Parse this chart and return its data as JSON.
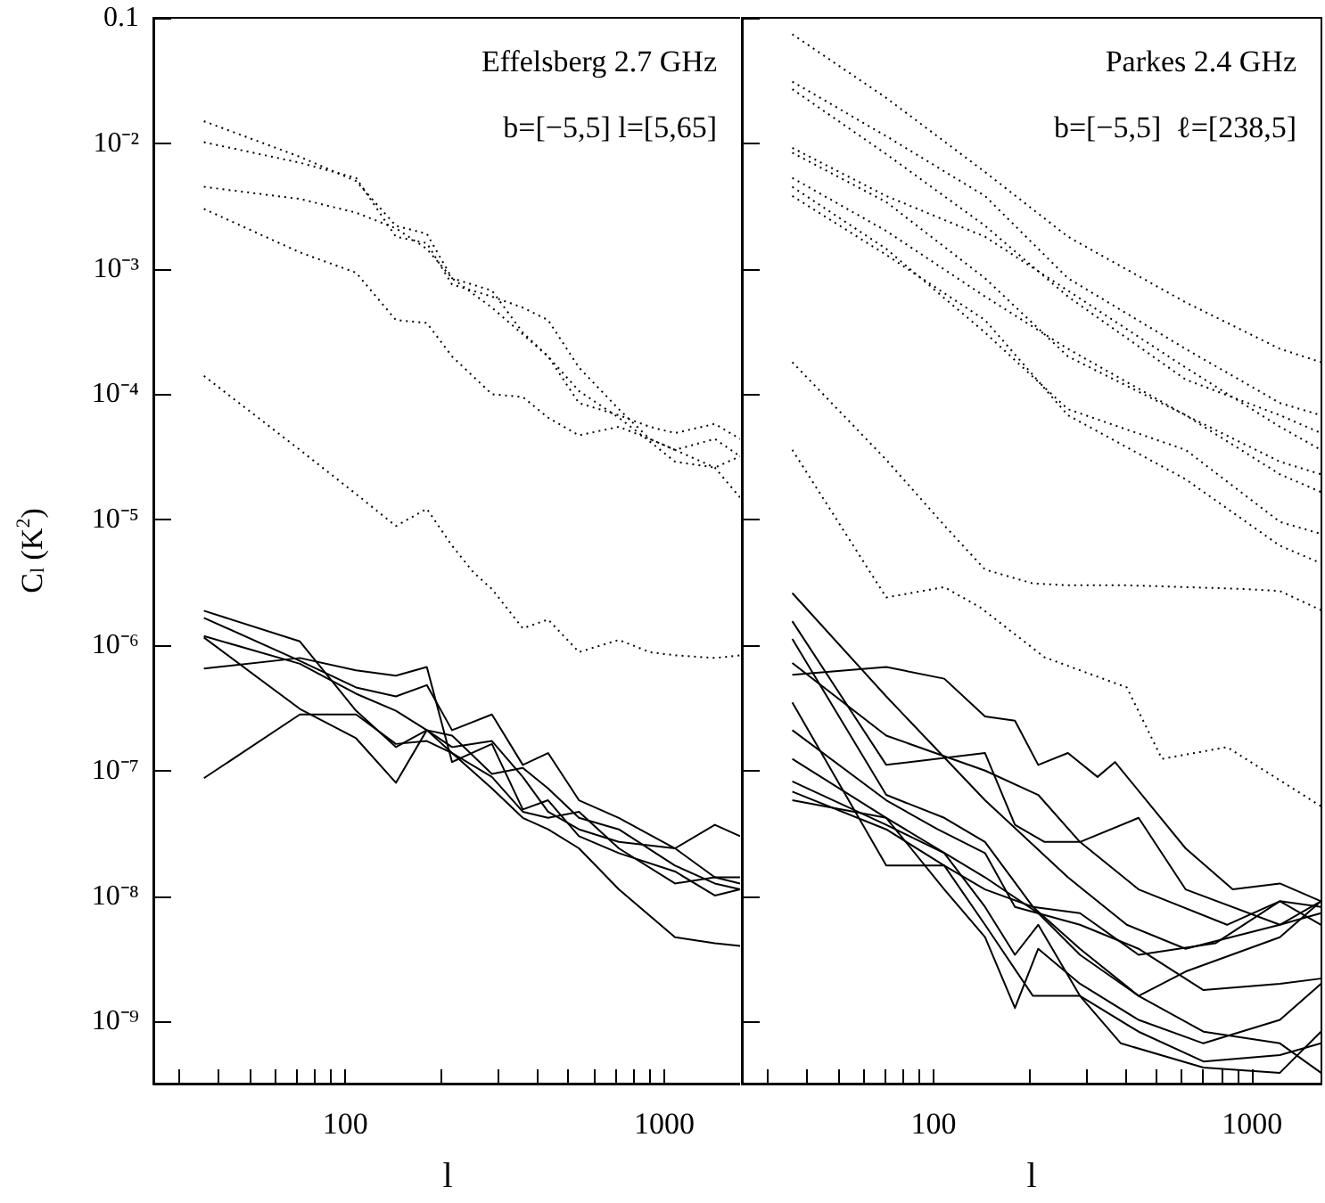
{
  "chart_data": [
    {
      "type": "line",
      "xlabel": "l",
      "ylabel": "C$_{l}$ (K$^{2}$)",
      "log": "xy",
      "marker": "none",
      "grid": false,
      "annotations": [
        "Effelsberg 2.7 GHz",
        "b=[−5,5] l=[5,65]"
      ],
      "xlim": [
        25,
        1750
      ],
      "ylim": [
        3.2e-10,
        0.1
      ],
      "xticks": [
        {
          "value": 30,
          "label": null
        },
        {
          "value": 40,
          "label": null
        },
        {
          "value": 50,
          "label": null
        },
        {
          "value": 60,
          "label": null
        },
        {
          "value": 70,
          "label": null
        },
        {
          "value": 80,
          "label": null
        },
        {
          "value": 90,
          "label": null
        },
        {
          "value": 100,
          "label": "100"
        },
        {
          "value": 200,
          "label": null
        },
        {
          "value": 300,
          "label": null
        },
        {
          "value": 400,
          "label": null
        },
        {
          "value": 500,
          "label": null
        },
        {
          "value": 600,
          "label": null
        },
        {
          "value": 700,
          "label": null
        },
        {
          "value": 800,
          "label": null
        },
        {
          "value": 900,
          "label": null
        },
        {
          "value": 1000,
          "label": "1000"
        }
      ],
      "yticks": [
        {
          "value": 1e-09,
          "label": "10⁻⁹"
        },
        {
          "value": 1e-08,
          "label": "10⁻⁸"
        },
        {
          "value": 1e-07,
          "label": "10⁻⁷"
        },
        {
          "value": 1e-06,
          "label": "10⁻⁶"
        },
        {
          "value": 1e-05,
          "label": "10⁻⁵"
        },
        {
          "value": 0.0001,
          "label": "10⁻⁴"
        },
        {
          "value": 0.001,
          "label": "10⁻³"
        },
        {
          "value": 0.01,
          "label": "10⁻²"
        },
        0.1
      ],
      "series": [
        {
          "color": "#000000",
          "line_style": "dotted",
          "x": [
            36,
            72,
            108,
            144,
            180,
            216,
            288,
            360,
            432,
            540,
            720,
            900,
            1080,
            1440,
            1728
          ],
          "values": [
            0.015,
            0.0078,
            0.005,
            0.0022,
            0.0019,
            0.00084,
            0.00067,
            0.00031,
            0.0002,
            8.5e-05,
            6.8e-05,
            5.5e-05,
            4.9e-05,
            5.8e-05,
            4.4e-05
          ]
        },
        {
          "color": "#000000",
          "line_style": "dotted",
          "x": [
            36,
            72,
            108,
            144,
            180,
            216,
            288,
            360,
            432,
            540,
            720,
            900,
            1080,
            1440,
            1728
          ],
          "values": [
            0.0102,
            0.007,
            0.0053,
            0.0018,
            0.0016,
            0.00075,
            0.0006,
            0.00049,
            0.00039,
            0.000163,
            7.6e-05,
            4.4e-05,
            3.6e-05,
            4.4e-05,
            3.2e-05
          ]
        },
        {
          "color": "#000000",
          "line_style": "dotted",
          "x": [
            36,
            72,
            108,
            144,
            180,
            216,
            288,
            360,
            432,
            540,
            720,
            900,
            1080,
            1440,
            1728
          ],
          "values": [
            0.0045,
            0.0036,
            0.0028,
            0.0021,
            0.00144,
            0.00084,
            0.00049,
            0.0003,
            0.0002,
            0.000106,
            6.5e-05,
            4.2e-05,
            2.9e-05,
            2.6e-05,
            3.2e-05
          ]
        },
        {
          "color": "#000000",
          "line_style": "dotted",
          "x": [
            36,
            72,
            108,
            144,
            180,
            216,
            288,
            360,
            432,
            540,
            720,
            900,
            1080,
            1440,
            1728
          ],
          "values": [
            0.003,
            0.00135,
            0.00093,
            0.00039,
            0.00037,
            0.0002,
            0.0001,
            9.5e-05,
            6.5e-05,
            4.7e-05,
            5.5e-05,
            4.4e-05,
            3.6e-05,
            2.6e-05,
            1.5e-05
          ]
        },
        {
          "color": "#000000",
          "line_style": "dotted",
          "x": [
            36,
            72,
            108,
            144,
            180,
            216,
            252,
            288,
            360,
            432,
            540,
            720,
            900,
            1080,
            1440,
            1728
          ],
          "values": [
            0.00014,
            3.6e-05,
            1.6e-05,
            8.9e-06,
            1.22e-05,
            6.2e-06,
            3.8e-06,
            2.8e-06,
            1.36e-06,
            1.6e-06,
            8.8e-07,
            1.1e-06,
            8.8e-07,
            8.3e-07,
            7.9e-07,
            8.3e-07
          ]
        },
        {
          "color": "#000000",
          "line_style": "solid",
          "x": [
            36,
            72,
            108,
            144,
            180,
            216,
            288,
            360,
            432,
            540,
            720,
            1080,
            1440,
            1728
          ],
          "values": [
            1.88e-06,
            1.07e-06,
            3e-07,
            1.54e-07,
            2.1e-07,
            1.54e-07,
            1.72e-07,
            8.9e-08,
            4.7e-08,
            3.4e-08,
            2.7e-08,
            2.4e-08,
            3.7e-08,
            3e-08
          ]
        },
        {
          "color": "#000000",
          "line_style": "solid",
          "x": [
            36,
            72,
            108,
            144,
            180,
            216,
            288,
            360,
            432,
            540,
            720,
            1080,
            1440,
            1728
          ],
          "values": [
            1.65e-06,
            7.5e-07,
            4.6e-07,
            3.9e-07,
            4.8e-07,
            2.1e-07,
            2.8e-07,
            1.11e-07,
            1.38e-07,
            5.8e-08,
            4.2e-08,
            2.4e-08,
            1.41e-08,
            1.41e-08
          ]
        },
        {
          "color": "#000000",
          "line_style": "solid",
          "x": [
            36,
            72,
            108,
            144,
            180,
            216,
            288,
            360,
            432,
            540,
            720,
            1080,
            1440,
            1728
          ],
          "values": [
            1.18e-06,
            7.1e-07,
            4.1e-07,
            3e-07,
            2.1e-07,
            1.9e-07,
            9.4e-08,
            1.05e-07,
            7.2e-08,
            4.2e-08,
            3.4e-08,
            1.75e-08,
            1.26e-08,
            1.13e-08
          ]
        },
        {
          "color": "#000000",
          "line_style": "solid",
          "x": [
            36,
            72,
            108,
            144,
            180,
            216,
            288,
            360,
            432,
            540,
            720,
            1080,
            1440,
            1728
          ],
          "values": [
            1.15e-06,
            3.1e-07,
            1.81e-07,
            8e-08,
            2.1e-07,
            1.38e-07,
            8.9e-08,
            4.7e-08,
            4.2e-08,
            4.7e-08,
            2.4e-08,
            1.26e-08,
            1.41e-08,
            1.26e-08
          ]
        },
        {
          "color": "#000000",
          "line_style": "solid",
          "x": [
            36,
            72,
            108,
            144,
            180,
            216,
            288,
            360,
            432,
            540,
            720,
            1080,
            1440,
            1728
          ],
          "values": [
            6.5e-07,
            7.9e-07,
            6.3e-07,
            5.7e-07,
            6.7e-07,
            1.17e-07,
            1.63e-07,
            4.9e-08,
            5.8e-08,
            3e-08,
            2.2e-08,
            1.57e-08,
            1.01e-08,
            1.13e-08
          ]
        },
        {
          "color": "#000000",
          "line_style": "solid",
          "x": [
            36,
            72,
            108,
            144,
            180,
            216,
            288,
            360,
            432,
            540,
            720,
            1080,
            1440,
            1728
          ],
          "values": [
            8.7e-08,
            2.8e-07,
            2.8e-07,
            1.63e-07,
            1.72e-07,
            1.38e-07,
            7.2e-08,
            4.2e-08,
            3.4e-08,
            2.4e-08,
            1.13e-08,
            4.7e-09,
            4.2e-09,
            4e-09
          ]
        }
      ]
    },
    {
      "type": "line",
      "xlabel": "l",
      "log": "xy",
      "marker": "none",
      "grid": false,
      "tick_labels": "x",
      "annotations": [
        "Parkes 2.4 GHz",
        "b=[−5,5]  ℓ=[238,5]"
      ],
      "xlim": [
        25,
        1650
      ],
      "ylim": [
        3.2e-10,
        0.1
      ],
      "xticks": [
        {
          "value": 30,
          "label": null
        },
        {
          "value": 40,
          "label": null
        },
        {
          "value": 50,
          "label": null
        },
        {
          "value": 60,
          "label": null
        },
        {
          "value": 70,
          "label": null
        },
        {
          "value": 80,
          "label": null
        },
        {
          "value": 90,
          "label": null
        },
        {
          "value": 100,
          "label": "100"
        },
        {
          "value": 200,
          "label": null
        },
        {
          "value": 300,
          "label": null
        },
        {
          "value": 400,
          "label": null
        },
        {
          "value": 500,
          "label": null
        },
        {
          "value": 600,
          "label": null
        },
        {
          "value": 700,
          "label": null
        },
        {
          "value": 800,
          "label": null
        },
        {
          "value": 900,
          "label": null
        },
        {
          "value": 1000,
          "label": "1000"
        }
      ],
      "yticks": [
        {
          "value": 1e-09,
          "label": null
        },
        {
          "value": 1e-08,
          "label": null
        },
        {
          "value": 1e-07,
          "label": null
        },
        {
          "value": 1e-06,
          "label": null
        },
        {
          "value": 1e-05,
          "label": null
        },
        {
          "value": 0.0001,
          "label": null
        },
        {
          "value": 0.001,
          "label": null
        },
        {
          "value": 0.01,
          "label": null
        },
        {
          "value": 0.1,
          "label": null
        }
      ],
      "series": [
        {
          "color": "#000000",
          "line_style": "dotted",
          "x": [
            36,
            71,
            145,
            264,
            618,
            1222,
            1645
          ],
          "values": [
            0.074,
            0.023,
            0.0059,
            0.0018,
            0.00054,
            0.00023,
            0.00018
          ]
        },
        {
          "color": "#000000",
          "line_style": "dotted",
          "x": [
            36,
            71,
            145,
            264,
            618,
            1222,
            1645
          ],
          "values": [
            0.031,
            0.0114,
            0.0038,
            0.00084,
            0.00023,
            8.5e-05,
            6.8e-05
          ]
        },
        {
          "color": "#000000",
          "line_style": "dotted",
          "x": [
            36,
            71,
            145,
            264,
            618,
            1222,
            1645
          ],
          "values": [
            0.027,
            0.0082,
            0.0022,
            0.0006,
            0.000131,
            6.8e-05,
            4.9e-05
          ]
        },
        {
          "color": "#000000",
          "line_style": "dotted",
          "x": [
            36,
            71,
            145,
            264,
            618,
            1222,
            1645
          ],
          "values": [
            0.0092,
            0.0038,
            0.0018,
            0.00067,
            0.000163,
            5.5e-05,
            3.6e-05
          ]
        },
        {
          "color": "#000000",
          "line_style": "dotted",
          "x": [
            36,
            71,
            145,
            264,
            618,
            1222,
            1645
          ],
          "values": [
            0.0084,
            0.0034,
            0.00084,
            0.0002,
            6.8e-05,
            2.3e-05,
            1.66e-05
          ]
        },
        {
          "color": "#000000",
          "line_style": "dotted",
          "x": [
            36,
            71,
            145,
            264,
            618,
            1222,
            1645
          ],
          "values": [
            0.0053,
            0.002,
            0.0006,
            0.00023,
            6.8e-05,
            2.9e-05,
            2.3e-05
          ]
        },
        {
          "color": "#000000",
          "line_style": "dotted",
          "x": [
            36,
            71,
            145,
            264,
            618,
            1222,
            1645
          ],
          "values": [
            0.0045,
            0.00144,
            0.00031,
            7.6e-05,
            3.6e-05,
            9.6e-06,
            7.7e-06
          ]
        },
        {
          "color": "#000000",
          "line_style": "dotted",
          "x": [
            36,
            71,
            145,
            264,
            618,
            1222,
            1645
          ],
          "values": [
            0.0038,
            0.00129,
            0.00039,
            6.8e-05,
            2.1e-05,
            6.2e-06,
            4.5e-06
          ]
        },
        {
          "color": "#000000",
          "line_style": "dotted",
          "x": [
            36,
            71,
            108,
            145,
            205,
            264,
            404,
            618,
            946,
            1222,
            1645
          ],
          "values": [
            0.00018,
            3e-05,
            9e-06,
            4e-06,
            3.1e-06,
            3e-06,
            3e-06,
            2.9e-06,
            2.8e-06,
            2.7e-06,
            1.9e-06
          ]
        },
        {
          "color": "#000000",
          "line_style": "dotted",
          "x": [
            36,
            71,
            108,
            140,
            223,
            404,
            521,
            834,
            1645
          ],
          "values": [
            3.6e-05,
            2.4e-06,
            2.9e-06,
            2e-06,
            8e-07,
            4.6e-07,
            1.24e-07,
            1.54e-07,
            5.2e-08
          ]
        },
        {
          "color": "#000000",
          "line_style": "solid",
          "x": [
            36,
            71,
            145,
            264,
            404,
            618,
            1222,
            1645
          ],
          "values": [
            2.6e-06,
            3.9e-07,
            5.8e-08,
            1.41e-08,
            5.9e-09,
            3.8e-09,
            5.9e-09,
            9.1e-09
          ]
        },
        {
          "color": "#000000",
          "line_style": "solid",
          "x": [
            36,
            71,
            108,
            145,
            180,
            213,
            264,
            327,
            371,
            618,
            869,
            1222,
            1645
          ],
          "values": [
            5.8e-07,
            6.7e-07,
            5.4e-07,
            2.7e-07,
            2.5e-07,
            1.11e-07,
            1.38e-07,
            8.9e-08,
            1.17e-07,
            2.4e-08,
            1.13e-08,
            1.26e-08,
            9.1e-09
          ]
        },
        {
          "color": "#000000",
          "line_style": "solid",
          "x": [
            36,
            71,
            145,
            213,
            288,
            440,
            618,
            1222,
            1645
          ],
          "values": [
            7.2e-07,
            1.9e-07,
            1e-07,
            6.4e-08,
            2.7e-08,
            4.2e-08,
            1.13e-08,
            5.9e-09,
            7.3e-09
          ]
        },
        {
          "color": "#000000",
          "line_style": "solid",
          "x": [
            36,
            71,
            145,
            180,
            223,
            288,
            440,
            834,
            1222,
            1645
          ],
          "values": [
            1.55e-06,
            1.11e-07,
            1.38e-07,
            3.7e-08,
            2.7e-08,
            2.7e-08,
            1.13e-08,
            5.9e-09,
            9.1e-09,
            5.9e-09
          ]
        },
        {
          "color": "#000000",
          "line_style": "solid",
          "x": [
            36,
            71,
            108,
            145,
            205,
            288,
            440,
            618,
            1222,
            1645
          ],
          "values": [
            1.12e-06,
            6.4e-08,
            4.2e-08,
            2.7e-08,
            8.2e-09,
            3.8e-09,
            1.6e-09,
            2.5e-09,
            4.7e-09,
            9.1e-09
          ]
        },
        {
          "color": "#000000",
          "line_style": "solid",
          "x": [
            36,
            71,
            108,
            145,
            205,
            288,
            440,
            766,
            1222,
            1645
          ],
          "values": [
            3.5e-07,
            1.75e-08,
            1.75e-08,
            1.13e-08,
            8.2e-09,
            7.3e-09,
            3.4e-09,
            4.2e-09,
            9.1e-09,
            8.2e-09
          ]
        },
        {
          "color": "#000000",
          "line_style": "solid",
          "x": [
            36,
            71,
            103,
            145,
            180,
            288,
            440,
            703,
            1222,
            1645
          ],
          "values": [
            2.1e-07,
            5.8e-08,
            3.4e-08,
            2.2e-08,
            8.2e-09,
            5.9e-09,
            3.8e-09,
            1.78e-09,
            2e-09,
            2.2e-09
          ]
        },
        {
          "color": "#000000",
          "line_style": "solid",
          "x": [
            36,
            71,
            108,
            145,
            180,
            213,
            288,
            440,
            703,
            1222,
            1645
          ],
          "values": [
            1.24e-07,
            4.2e-08,
            1.13e-08,
            4.7e-09,
            1.28e-09,
            3.8e-09,
            2e-09,
            1.03e-09,
            6.7e-10,
            1.03e-09,
            2e-09
          ]
        },
        {
          "color": "#000000",
          "line_style": "solid",
          "x": [
            36,
            71,
            108,
            145,
            180,
            213,
            288,
            440,
            703,
            1222,
            1645
          ],
          "values": [
            8.2e-08,
            3.7e-08,
            2.2e-08,
            8.2e-09,
            3.4e-09,
            5.9e-09,
            1.6e-09,
            8.3e-10,
            4.8e-10,
            5.4e-10,
            6.7e-10
          ]
        },
        {
          "color": "#000000",
          "line_style": "solid",
          "x": [
            36,
            71,
            108,
            145,
            205,
            288,
            387,
            703,
            1222,
            1645
          ],
          "values": [
            6.8e-08,
            3.4e-08,
            1.75e-08,
            5.9e-09,
            1.6e-09,
            1.6e-09,
            6.7e-10,
            4.3e-10,
            3.9e-10,
            8.3e-10
          ]
        },
        {
          "color": "#000000",
          "line_style": "solid",
          "x": [
            36,
            71,
            145,
            213,
            288,
            440,
            703,
            1222,
            1645
          ],
          "values": [
            5.8e-08,
            4.2e-08,
            1.41e-08,
            7.3e-09,
            3.4e-09,
            1.6e-09,
            8.3e-10,
            6.7e-10,
            3.9e-10
          ]
        }
      ]
    }
  ]
}
